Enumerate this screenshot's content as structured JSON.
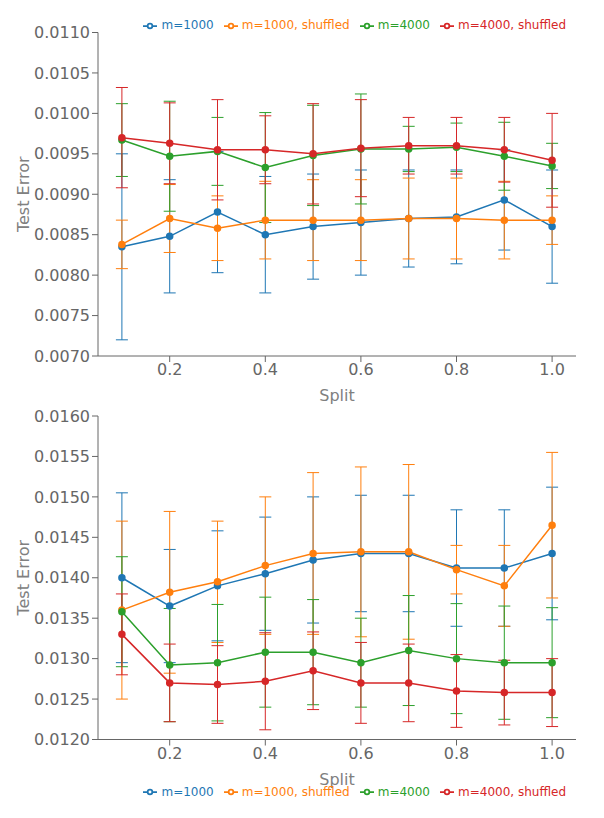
{
  "chart_data": [
    {
      "type": "line",
      "xlabel": "Split",
      "ylabel": "Test Error",
      "x": [
        0.1,
        0.2,
        0.3,
        0.4,
        0.5,
        0.6,
        0.7,
        0.8,
        0.9,
        1.0
      ],
      "xlim": [
        0.05,
        1.05
      ],
      "xticks": [
        0.2,
        0.4,
        0.6,
        0.8,
        {
          "value": 1.0,
          "label": "1.0"
        }
      ],
      "ylim": [
        0.007,
        0.011
      ],
      "yticks": [
        {
          "value": 0.007,
          "label": "0.0070"
        },
        0.0075,
        {
          "value": 0.008,
          "label": "0.0080"
        },
        0.0085,
        {
          "value": 0.009,
          "label": "0.0090"
        },
        0.0095,
        {
          "value": 0.01,
          "label": "0.0100"
        },
        0.0105,
        {
          "value": 0.011,
          "label": "0.0110"
        }
      ],
      "legend": "upper right",
      "grid": false,
      "marker": "circle",
      "line_style": "solid",
      "series": [
        {
          "name": "m=1000",
          "color": "#1f77b4",
          "values": [
            0.00835,
            0.00848,
            0.00878,
            0.0085,
            0.0086,
            0.00865,
            0.0087,
            0.00872,
            0.00893,
            0.0086
          ],
          "errors": [
            0.00115,
            0.0007,
            0.00075,
            0.00072,
            0.00065,
            0.00065,
            0.0006,
            0.00058,
            0.00062,
            0.0007
          ]
        },
        {
          "name": "m=1000, shuffled",
          "color": "#ff7f0e",
          "values": [
            0.00838,
            0.0087,
            0.00858,
            0.00868,
            0.00868,
            0.00868,
            0.0087,
            0.0087,
            0.00868,
            0.00868
          ],
          "errors": [
            0.0003,
            0.00042,
            0.0004,
            0.00048,
            0.0005,
            0.0005,
            0.0005,
            0.0005,
            0.00048,
            0.0003
          ]
        },
        {
          "name": "m=4000",
          "color": "#2ca02c",
          "values": [
            0.00967,
            0.00947,
            0.00953,
            0.00933,
            0.00948,
            0.00956,
            0.00956,
            0.00958,
            0.00947,
            0.00935
          ],
          "errors": [
            0.00045,
            0.00068,
            0.00042,
            0.00068,
            0.00062,
            0.00068,
            0.00028,
            0.0003,
            0.00042,
            0.00028
          ]
        },
        {
          "name": "m=4000, shuffled",
          "color": "#d62728",
          "values": [
            0.0097,
            0.00963,
            0.00955,
            0.00955,
            0.0095,
            0.00957,
            0.0096,
            0.0096,
            0.00955,
            0.00942
          ],
          "errors": [
            0.00062,
            0.0005,
            0.00062,
            0.00042,
            0.00062,
            0.0006,
            0.00035,
            0.00035,
            0.0004,
            0.00058
          ]
        }
      ]
    },
    {
      "type": "line",
      "xlabel": "Split",
      "ylabel": "Test Error",
      "x": [
        0.1,
        0.2,
        0.3,
        0.4,
        0.5,
        0.6,
        0.7,
        0.8,
        0.9,
        1.0
      ],
      "xlim": [
        0.05,
        1.05
      ],
      "xticks": [
        0.2,
        0.4,
        0.6,
        0.8,
        {
          "value": 1.0,
          "label": "1.0"
        }
      ],
      "ylim": [
        0.012,
        0.016
      ],
      "yticks": [
        {
          "value": 0.012,
          "label": "0.0120"
        },
        0.0125,
        {
          "value": 0.013,
          "label": "0.0130"
        },
        0.0135,
        {
          "value": 0.014,
          "label": "0.0140"
        },
        0.0145,
        {
          "value": 0.015,
          "label": "0.0150"
        },
        0.0155,
        {
          "value": 0.016,
          "label": "0.0160"
        }
      ],
      "legend": "lower right",
      "grid": false,
      "marker": "circle",
      "line_style": "solid",
      "series": [
        {
          "name": "m=1000",
          "color": "#1f77b4",
          "values": [
            0.014,
            0.01365,
            0.0139,
            0.01405,
            0.01422,
            0.0143,
            0.0143,
            0.01412,
            0.01412,
            0.0143
          ],
          "errors": [
            0.00105,
            0.0007,
            0.00068,
            0.0007,
            0.00078,
            0.00072,
            0.00072,
            0.00072,
            0.00072,
            0.00082
          ]
        },
        {
          "name": "m=1000, shuffled",
          "color": "#ff7f0e",
          "values": [
            0.0136,
            0.01382,
            0.01395,
            0.01415,
            0.0143,
            0.01432,
            0.01432,
            0.0141,
            0.0139,
            0.01465
          ],
          "errors": [
            0.0011,
            0.001,
            0.00075,
            0.00085,
            0.001,
            0.00105,
            0.00108,
            0.0003,
            0.0005,
            0.0009
          ]
        },
        {
          "name": "m=4000",
          "color": "#2ca02c",
          "values": [
            0.01358,
            0.01292,
            0.01295,
            0.01308,
            0.01308,
            0.01295,
            0.0131,
            0.013,
            0.01295,
            0.01295
          ],
          "errors": [
            0.00068,
            0.0007,
            0.00072,
            0.00068,
            0.00065,
            0.00055,
            0.00068,
            0.00068,
            0.0007,
            0.00068
          ]
        },
        {
          "name": "m=4000, shuffled",
          "color": "#d62728",
          "values": [
            0.0133,
            0.0127,
            0.01268,
            0.01272,
            0.01285,
            0.0127,
            0.0127,
            0.0126,
            0.01258,
            0.01258
          ],
          "errors": [
            0.0005,
            0.00048,
            0.00048,
            0.0006,
            0.00048,
            0.0005,
            0.00048,
            0.00045,
            0.0004,
            0.00042
          ]
        }
      ]
    }
  ]
}
